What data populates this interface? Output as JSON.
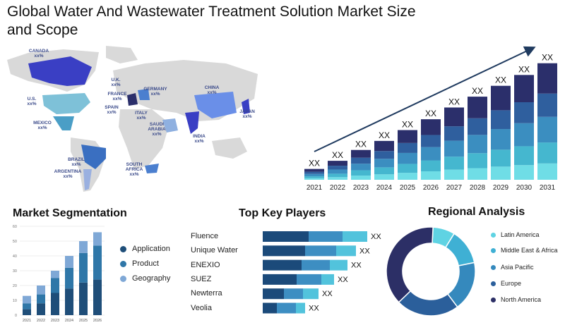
{
  "title": "Global Water And Wastewater Treatment Solution Market Size and Scope",
  "map": {
    "countries": [
      {
        "name": "CANADA",
        "value": "xx%"
      },
      {
        "name": "U.S.",
        "value": "xx%"
      },
      {
        "name": "MEXICO",
        "value": "xx%"
      },
      {
        "name": "BRAZIL",
        "value": "xx%"
      },
      {
        "name": "ARGENTINA",
        "value": "xx%"
      },
      {
        "name": "U.K.",
        "value": "xx%"
      },
      {
        "name": "FRANCE",
        "value": "xx%"
      },
      {
        "name": "SPAIN",
        "value": "xx%"
      },
      {
        "name": "GERMANY",
        "value": "xx%"
      },
      {
        "name": "ITALY",
        "value": "xx%"
      },
      {
        "name": "SAUDI ARABIA",
        "value": "xx%"
      },
      {
        "name": "SOUTH AFRICA",
        "value": "xx%"
      },
      {
        "name": "CHINA",
        "value": "xx%"
      },
      {
        "name": "INDIA",
        "value": "xx%"
      },
      {
        "name": "JAPAN",
        "value": "xx%"
      }
    ]
  },
  "colors": {
    "navy": "#2b2f6b",
    "blue": "#2f5f9e",
    "mid": "#3b8ec0",
    "light": "#45b7cf",
    "cyan": "#6fdde6",
    "seg_app": "#1f4e79",
    "seg_prod": "#2f77a8",
    "seg_geo": "#7fa8d6",
    "player_dark": "#1b4a7a",
    "player_mid": "#3d8ec2",
    "player_light": "#52c3dc",
    "region_latin": "#5fd3e3",
    "region_mea": "#3fb0d4",
    "region_apac": "#3589bd",
    "region_europe": "#2b5f9b",
    "region_na": "#2c2f66"
  },
  "chart_data": [
    {
      "type": "bar",
      "title": "",
      "categories": [
        "2021",
        "2022",
        "2023",
        "2024",
        "2025",
        "2026",
        "2027",
        "2028",
        "2029",
        "2030",
        "2031"
      ],
      "data_labels": [
        "XX",
        "XX",
        "XX",
        "XX",
        "XX",
        "XX",
        "XX",
        "XX",
        "XX",
        "XX",
        "XX"
      ],
      "totals": [
        12,
        21,
        33,
        43,
        55,
        67,
        80,
        92,
        104,
        116,
        129
      ],
      "ylim": [
        0,
        135
      ],
      "stacked": true,
      "layer_colors": [
        "#6fdde6",
        "#45b7cf",
        "#3b8ec0",
        "#2f5f9e",
        "#2b2f6b"
      ],
      "layer_fractions": [
        0.14,
        0.18,
        0.22,
        0.2,
        0.26
      ],
      "trend_arrow": true
    },
    {
      "type": "bar",
      "title": "Market Segmentation",
      "categories": [
        "2021",
        "2022",
        "2023",
        "2024",
        "2025",
        "2026"
      ],
      "ylim": [
        0,
        60
      ],
      "yticks": [
        0,
        10,
        20,
        30,
        40,
        50,
        60
      ],
      "stacked": true,
      "series": [
        {
          "name": "Application",
          "values": [
            4,
            8,
            15,
            18,
            22,
            24
          ]
        },
        {
          "name": "Product",
          "values": [
            4,
            6,
            10,
            14,
            20,
            23
          ]
        },
        {
          "name": "Geography",
          "values": [
            5,
            6,
            5,
            8,
            8,
            9
          ]
        }
      ]
    },
    {
      "type": "bar",
      "orientation": "horizontal",
      "title": "Top Key Players",
      "categories": [
        "Fluence",
        "Unique Water",
        "ENEXIO",
        "SUEZ",
        "Newterra",
        "Veolia"
      ],
      "data_labels": [
        "XX",
        "XX",
        "XX",
        "XX",
        "XX",
        "XX"
      ],
      "xlim": [
        0,
        150
      ],
      "stacked": true,
      "series": [
        {
          "values": [
            65,
            60,
            55,
            48,
            30,
            20
          ]
        },
        {
          "values": [
            48,
            44,
            40,
            35,
            27,
            27
          ]
        },
        {
          "values": [
            35,
            28,
            25,
            18,
            22,
            13
          ]
        }
      ]
    },
    {
      "type": "pie",
      "title": "Regional Analysis",
      "donut": true,
      "labels": [
        "Latin America",
        "Middle East & Africa",
        "Asia Pacific",
        "Europe",
        "North America"
      ],
      "values": [
        8,
        13,
        18,
        23,
        38
      ]
    }
  ]
}
